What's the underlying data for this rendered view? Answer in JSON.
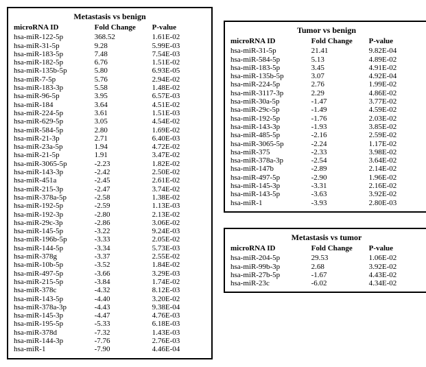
{
  "tables": {
    "metastasis_vs_benign": {
      "title": "Metastasis vs benign",
      "columns": [
        "microRNA ID",
        "Fold Change",
        "P-value"
      ],
      "rows": [
        [
          "hsa-miR-122-5p",
          "368.52",
          "1.61E-02"
        ],
        [
          "hsa-miR-31-5p",
          "9.28",
          "5.99E-03"
        ],
        [
          "hsa-miR-183-5p",
          "7.48",
          "7.54E-03"
        ],
        [
          "hsa-miR-182-5p",
          "6.76",
          "1.51E-02"
        ],
        [
          "hsa-miR-135b-5p",
          "5.80",
          "6.93E-05"
        ],
        [
          "hsa-miR-7-5p",
          "5.76",
          "2.94E-02"
        ],
        [
          "hsa-miR-183-3p",
          "5.58",
          "1.48E-02"
        ],
        [
          "hsa-miR-96-5p",
          "3.95",
          "6.57E-03"
        ],
        [
          "hsa-miR-184",
          "3.64",
          "4.51E-02"
        ],
        [
          "hsa-miR-224-5p",
          "3.61",
          "1.51E-03"
        ],
        [
          "hsa-miR-629-5p",
          "3.05",
          "4.54E-02"
        ],
        [
          "hsa-miR-584-5p",
          "2.80",
          "1.69E-02"
        ],
        [
          "hsa-miR-21-3p",
          "2.71",
          "6.40E-03"
        ],
        [
          "hsa-miR-23a-5p",
          "1.94",
          "4.72E-02"
        ],
        [
          "hsa-miR-21-5p",
          "1.91",
          "3.47E-02"
        ],
        [
          "hsa-miR-3065-5p",
          "-2.23",
          "1.82E-02"
        ],
        [
          "hsa-miR-143-3p",
          "-2.42",
          "2.50E-02"
        ],
        [
          "hsa-miR-451a",
          "-2.45",
          "2.61E-02"
        ],
        [
          "hsa-miR-215-3p",
          "-2.47",
          "3.74E-02"
        ],
        [
          "hsa-miR-378a-5p",
          "-2.58",
          "1.38E-02"
        ],
        [
          "hsa-miR-192-5p",
          "-2.59",
          "1.13E-03"
        ],
        [
          "hsa-miR-192-3p",
          "-2.80",
          "2.13E-02"
        ],
        [
          "hsa-miR-29c-3p",
          "-2.86",
          "3.06E-02"
        ],
        [
          "hsa-miR-145-5p",
          "-3.22",
          "9.24E-03"
        ],
        [
          "hsa-miR-196b-5p",
          "-3.33",
          "2.05E-02"
        ],
        [
          "hsa-miR-144-5p",
          "-3.34",
          "5.73E-03"
        ],
        [
          "hsa-miR-378g",
          "-3.37",
          "2.55E-02"
        ],
        [
          "hsa-miR-10b-5p",
          "-3.52",
          "1.84E-02"
        ],
        [
          "hsa-miR-497-5p",
          "-3.66",
          "3.29E-03"
        ],
        [
          "hsa-miR-215-5p",
          "-3.84",
          "1.74E-02"
        ],
        [
          "hsa-miR-378c",
          "-4.32",
          "8.12E-03"
        ],
        [
          "hsa-miR-143-5p",
          "-4.40",
          "3.20E-02"
        ],
        [
          "hsa-miR-378a-3p",
          "-4.43",
          "9.38E-04"
        ],
        [
          "hsa-miR-145-3p",
          "-4.47",
          "4.76E-03"
        ],
        [
          "hsa-miR-195-5p",
          "-5.33",
          "6.18E-03"
        ],
        [
          "hsa-miR-378d",
          "-7.32",
          "1.43E-03"
        ],
        [
          "hsa-miR-144-3p",
          "-7.76",
          "2.76E-03"
        ],
        [
          "hsa-miR-1",
          "-7.90",
          "4.46E-04"
        ]
      ]
    },
    "tumor_vs_benign": {
      "title": "Tumor vs benign",
      "columns": [
        "microRNA ID",
        "Fold Change",
        "P-value"
      ],
      "rows": [
        [
          "hsa-miR-31-5p",
          "21.41",
          "9.82E-04"
        ],
        [
          "hsa-miR-584-5p",
          "5.13",
          "4.89E-02"
        ],
        [
          "hsa-miR-183-5p",
          "3.45",
          "4.91E-02"
        ],
        [
          "hsa-miR-135b-5p",
          "3.07",
          "4.92E-04"
        ],
        [
          "hsa-miR-224-5p",
          "2.76",
          "1.99E-02"
        ],
        [
          "hsa-miR-3117-3p",
          "2.29",
          "4.86E-02"
        ],
        [
          "hsa-miR-30a-5p",
          "-1.47",
          "3.77E-02"
        ],
        [
          "hsa-miR-29c-5p",
          "-1.49",
          "4.59E-02"
        ],
        [
          "hsa-miR-192-5p",
          "-1.76",
          "2.03E-02"
        ],
        [
          "hsa-miR-143-3p",
          "-1.93",
          "3.85E-02"
        ],
        [
          "hsa-miR-485-5p",
          "-2.16",
          "2.59E-02"
        ],
        [
          "hsa-miR-3065-5p",
          "-2.24",
          "1.17E-02"
        ],
        [
          "hsa-miR-375",
          "-2.33",
          "3.98E-02"
        ],
        [
          "hsa-miR-378a-3p",
          "-2.54",
          "3.64E-02"
        ],
        [
          "hsa-miR-147b",
          "-2.89",
          "2.14E-02"
        ],
        [
          "hsa-miR-497-5p",
          "-2.90",
          "1.96E-02"
        ],
        [
          "hsa-miR-145-3p",
          "-3.31",
          "2.16E-02"
        ],
        [
          "hsa-miR-143-5p",
          "-3.63",
          "3.92E-02"
        ],
        [
          "hsa-miR-1",
          "-3.93",
          "2.80E-03"
        ]
      ]
    },
    "metastasis_vs_tumor": {
      "title": "Metastasis vs tumor",
      "columns": [
        "microRNA ID",
        "Fold Change",
        "P-value"
      ],
      "rows": [
        [
          "hsa-miR-204-5p",
          "29.53",
          "1.06E-02"
        ],
        [
          "hsa-miR-99b-3p",
          "2.68",
          "3.92E-02"
        ],
        [
          "hsa-miR-27b-5p",
          "-1.67",
          "4.43E-02"
        ],
        [
          "hsa-miR-23c",
          "-6.02",
          "4.34E-02"
        ]
      ]
    }
  }
}
